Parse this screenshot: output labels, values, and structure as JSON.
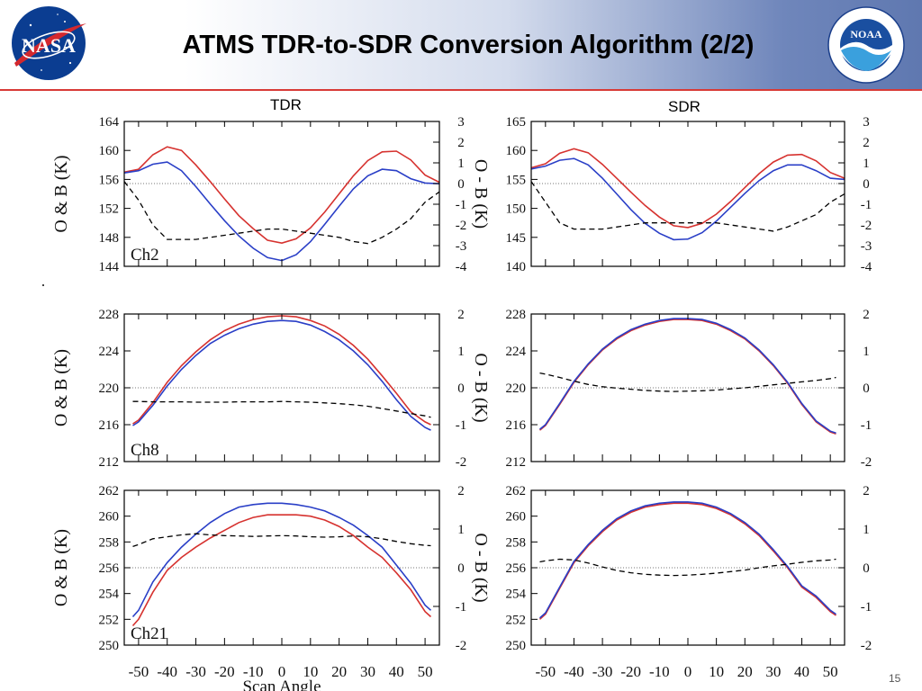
{
  "slide": {
    "title": "ATMS TDR-to-SDR Conversion Algorithm (2/2)",
    "tdr_label": "TDR",
    "sdr_label": "SDR",
    "page_number": "15",
    "logos": {
      "left": "NASA",
      "right": "NOAA"
    }
  },
  "colors": {
    "observation": "#d6322f",
    "background": "#2a3fc7",
    "difference": "#000000",
    "header_rule": "#d83a36"
  },
  "chart_data": [
    {
      "type": "line",
      "column": "TDR",
      "channel": "Ch2",
      "ylabel": "O & B (K)",
      "ylabel2": "O - B (K)",
      "xlabel": "",
      "xlim": [
        -55,
        55
      ],
      "ylim": [
        144,
        164
      ],
      "y2lim": [
        -4,
        3
      ],
      "yticks": [
        "144",
        "148",
        "152",
        "156",
        "160",
        "164"
      ],
      "y2ticks": [
        "-4",
        "-3",
        "-2",
        "-1",
        "0",
        "1",
        "2",
        "3"
      ],
      "xticks": [],
      "x": [
        -55,
        -50,
        -45,
        -40,
        -35,
        -30,
        -25,
        -20,
        -15,
        -10,
        -5,
        0,
        5,
        10,
        15,
        20,
        25,
        30,
        35,
        40,
        45,
        50,
        55
      ],
      "series": [
        {
          "role": "O",
          "values": [
            157,
            157.4,
            159.4,
            160.5,
            160,
            158,
            155.7,
            153.3,
            151,
            149.2,
            147.6,
            147.2,
            147.8,
            149.3,
            151.5,
            154,
            156.5,
            158.6,
            159.8,
            159.9,
            158.7,
            156.6,
            155.6
          ]
        },
        {
          "role": "B",
          "values": [
            156.9,
            157.2,
            158.1,
            158.4,
            157.2,
            155,
            152.6,
            150.3,
            148.2,
            146.5,
            145.2,
            144.8,
            145.6,
            147.4,
            149.8,
            152.3,
            154.7,
            156.5,
            157.4,
            157.2,
            156.1,
            155.5,
            155.4
          ]
        },
        {
          "role": "O-B",
          "values": [
            0.1,
            -0.8,
            -2.0,
            -2.7,
            -2.7,
            -2.7,
            -2.6,
            -2.5,
            -2.4,
            -2.3,
            -2.2,
            -2.2,
            -2.3,
            -2.4,
            -2.5,
            -2.6,
            -2.8,
            -2.9,
            -2.6,
            -2.2,
            -1.7,
            -0.9,
            -0.4
          ]
        }
      ]
    },
    {
      "type": "line",
      "column": "SDR",
      "channel": "",
      "ylabel": "",
      "ylabel2": "",
      "xlabel": "",
      "xlim": [
        -55,
        55
      ],
      "ylim": [
        140,
        165
      ],
      "y2lim": [
        -4,
        3
      ],
      "yticks": [
        "140",
        "145",
        "150",
        "155",
        "160",
        "165"
      ],
      "y2ticks": [
        "-4",
        "-3",
        "-2",
        "-1",
        "0",
        "1",
        "2",
        "3"
      ],
      "xticks": [],
      "x": [
        -55,
        -50,
        -45,
        -40,
        -35,
        -30,
        -25,
        -20,
        -15,
        -10,
        -5,
        0,
        5,
        10,
        15,
        20,
        25,
        30,
        35,
        40,
        45,
        50,
        55
      ],
      "series": [
        {
          "role": "O",
          "values": [
            157,
            157.7,
            159.5,
            160.3,
            159.6,
            157.6,
            155.2,
            152.8,
            150.5,
            148.5,
            147,
            146.7,
            147.4,
            149,
            151.2,
            153.6,
            156,
            158,
            159.2,
            159.3,
            158.2,
            156.2,
            155.2
          ]
        },
        {
          "role": "B",
          "values": [
            156.8,
            157.3,
            158.3,
            158.6,
            157.5,
            155.2,
            152.5,
            149.8,
            147.4,
            145.7,
            144.6,
            144.7,
            145.8,
            147.8,
            150.2,
            152.6,
            154.8,
            156.5,
            157.5,
            157.5,
            156.5,
            155.2,
            155.0
          ]
        },
        {
          "role": "O-B",
          "values": [
            0.1,
            -0.9,
            -1.9,
            -2.2,
            -2.2,
            -2.2,
            -2.1,
            -2.0,
            -1.9,
            -1.9,
            -1.9,
            -1.9,
            -1.9,
            -1.9,
            -2.0,
            -2.1,
            -2.2,
            -2.3,
            -2.1,
            -1.8,
            -1.5,
            -0.9,
            -0.5
          ]
        }
      ]
    },
    {
      "type": "line",
      "column": "TDR",
      "channel": "Ch8",
      "ylabel": "O & B (K)",
      "ylabel2": "O - B (K)",
      "xlabel": "",
      "xlim": [
        -55,
        55
      ],
      "ylim": [
        212,
        228
      ],
      "y2lim": [
        -2,
        2
      ],
      "yticks": [
        "212",
        "216",
        "220",
        "224",
        "228"
      ],
      "y2ticks": [
        "-2",
        "-1",
        "0",
        "1",
        "2"
      ],
      "xticks": [],
      "x": [
        -52,
        -50,
        -45,
        -40,
        -35,
        -30,
        -25,
        -20,
        -15,
        -10,
        -5,
        0,
        5,
        10,
        15,
        20,
        25,
        30,
        35,
        40,
        45,
        50,
        52
      ],
      "series": [
        {
          "role": "O",
          "values": [
            216.1,
            216.5,
            218.4,
            220.6,
            222.4,
            223.9,
            225.2,
            226.2,
            226.9,
            227.4,
            227.7,
            227.8,
            227.7,
            227.3,
            226.7,
            225.8,
            224.6,
            223.1,
            221.3,
            219.4,
            217.4,
            216.3,
            216.0
          ]
        },
        {
          "role": "B",
          "values": [
            215.9,
            216.3,
            218.1,
            220.2,
            222.0,
            223.5,
            224.8,
            225.7,
            226.4,
            226.9,
            227.2,
            227.3,
            227.2,
            226.8,
            226.1,
            225.2,
            224.0,
            222.5,
            220.7,
            218.7,
            216.9,
            215.7,
            215.4
          ]
        },
        {
          "role": "O-B",
          "values": [
            -0.37,
            -0.37,
            -0.38,
            -0.38,
            -0.38,
            -0.39,
            -0.39,
            -0.39,
            -0.38,
            -0.38,
            -0.38,
            -0.37,
            -0.38,
            -0.39,
            -0.41,
            -0.43,
            -0.46,
            -0.5,
            -0.56,
            -0.63,
            -0.7,
            -0.76,
            -0.8
          ]
        }
      ]
    },
    {
      "type": "line",
      "column": "SDR",
      "channel": "",
      "ylabel": "",
      "ylabel2": "",
      "xlabel": "",
      "xlim": [
        -55,
        55
      ],
      "ylim": [
        212,
        228
      ],
      "y2lim": [
        -2,
        2
      ],
      "yticks": [
        "212",
        "216",
        "220",
        "224",
        "228"
      ],
      "y2ticks": [
        "-2",
        "-1",
        "0",
        "1",
        "2"
      ],
      "xticks": [],
      "x": [
        -52,
        -50,
        -45,
        -40,
        -35,
        -30,
        -25,
        -20,
        -15,
        -10,
        -5,
        0,
        5,
        10,
        15,
        20,
        25,
        30,
        35,
        40,
        45,
        50,
        52
      ],
      "series": [
        {
          "role": "O",
          "values": [
            215.4,
            215.9,
            218.2,
            220.6,
            222.5,
            224.1,
            225.3,
            226.2,
            226.8,
            227.2,
            227.4,
            227.4,
            227.3,
            226.9,
            226.2,
            225.3,
            224.0,
            222.4,
            220.5,
            218.2,
            216.3,
            215.2,
            215.0
          ]
        },
        {
          "role": "B",
          "values": [
            215.5,
            216.0,
            218.3,
            220.7,
            222.6,
            224.2,
            225.4,
            226.3,
            226.9,
            227.3,
            227.5,
            227.5,
            227.4,
            227.0,
            226.3,
            225.4,
            224.1,
            222.5,
            220.6,
            218.3,
            216.4,
            215.3,
            215.1
          ]
        },
        {
          "role": "O-B",
          "values": [
            0.4,
            0.37,
            0.28,
            0.18,
            0.09,
            0.03,
            -0.01,
            -0.04,
            -0.07,
            -0.09,
            -0.1,
            -0.09,
            -0.08,
            -0.06,
            -0.03,
            0.0,
            0.04,
            0.08,
            0.12,
            0.16,
            0.2,
            0.25,
            0.28
          ]
        }
      ]
    },
    {
      "type": "line",
      "column": "TDR",
      "channel": "Ch21",
      "ylabel": "O & B (K)",
      "ylabel2": "O - B (K)",
      "xlabel": "Scan Angle",
      "xlim": [
        -55,
        55
      ],
      "ylim": [
        250,
        262
      ],
      "y2lim": [
        -2,
        2
      ],
      "yticks": [
        "250",
        "252",
        "254",
        "256",
        "258",
        "260",
        "262"
      ],
      "y2ticks": [
        "-2",
        "-1",
        "0",
        "1",
        "2"
      ],
      "xticks": [
        "-50",
        "-40",
        "-30",
        "-20",
        "-10",
        "0",
        "10",
        "20",
        "30",
        "40",
        "50"
      ],
      "x": [
        -52,
        -50,
        -45,
        -40,
        -35,
        -30,
        -25,
        -20,
        -15,
        -10,
        -5,
        0,
        5,
        10,
        15,
        20,
        25,
        30,
        35,
        40,
        45,
        50,
        52
      ],
      "series": [
        {
          "role": "O",
          "values": [
            251.5,
            252.0,
            254.1,
            255.8,
            256.8,
            257.6,
            258.3,
            258.9,
            259.5,
            259.9,
            260.1,
            260.1,
            260.1,
            260.0,
            259.7,
            259.2,
            258.5,
            257.6,
            256.8,
            255.6,
            254.3,
            252.6,
            252.2
          ]
        },
        {
          "role": "B",
          "values": [
            252.2,
            252.7,
            254.9,
            256.4,
            257.6,
            258.6,
            259.5,
            260.2,
            260.7,
            260.9,
            261.0,
            261.0,
            260.9,
            260.7,
            260.4,
            259.9,
            259.3,
            258.5,
            257.6,
            256.2,
            254.8,
            253.1,
            252.7
          ]
        },
        {
          "role": "O-B",
          "values": [
            0.55,
            0.6,
            0.75,
            0.8,
            0.85,
            0.88,
            0.85,
            0.83,
            0.82,
            0.81,
            0.82,
            0.83,
            0.82,
            0.8,
            0.79,
            0.8,
            0.82,
            0.8,
            0.75,
            0.68,
            0.62,
            0.58,
            0.57
          ]
        }
      ]
    },
    {
      "type": "line",
      "column": "SDR",
      "channel": "",
      "ylabel": "",
      "ylabel2": "",
      "xlabel": "",
      "xlim": [
        -55,
        55
      ],
      "ylim": [
        250,
        262
      ],
      "y2lim": [
        -2,
        2
      ],
      "yticks": [
        "250",
        "252",
        "254",
        "256",
        "258",
        "260",
        "262"
      ],
      "y2ticks": [
        "-2",
        "-1",
        "0",
        "1",
        "2"
      ],
      "xticks": [
        "-50",
        "-40",
        "-30",
        "-20",
        "-10",
        "0",
        "10",
        "20",
        "30",
        "40",
        "50"
      ],
      "x": [
        -52,
        -50,
        -45,
        -40,
        -35,
        -30,
        -25,
        -20,
        -15,
        -10,
        -5,
        0,
        5,
        10,
        15,
        20,
        25,
        30,
        35,
        40,
        45,
        50,
        52
      ],
      "series": [
        {
          "role": "O",
          "values": [
            252.0,
            252.4,
            254.4,
            256.4,
            257.7,
            258.8,
            259.7,
            260.3,
            260.7,
            260.9,
            261.0,
            261.0,
            260.9,
            260.6,
            260.1,
            259.4,
            258.5,
            257.3,
            256.0,
            254.5,
            253.7,
            252.6,
            252.3
          ]
        },
        {
          "role": "B",
          "values": [
            252.1,
            252.5,
            254.5,
            256.5,
            257.8,
            258.9,
            259.8,
            260.4,
            260.8,
            261.0,
            261.1,
            261.1,
            261.0,
            260.7,
            260.2,
            259.5,
            258.6,
            257.4,
            256.1,
            254.6,
            253.8,
            252.7,
            252.4
          ]
        },
        {
          "role": "O-B",
          "values": [
            0.15,
            0.18,
            0.22,
            0.2,
            0.12,
            0.02,
            -0.07,
            -0.13,
            -0.17,
            -0.19,
            -0.2,
            -0.19,
            -0.17,
            -0.14,
            -0.1,
            -0.06,
            0.0,
            0.05,
            0.09,
            0.14,
            0.18,
            0.2,
            0.22
          ]
        }
      ]
    }
  ]
}
